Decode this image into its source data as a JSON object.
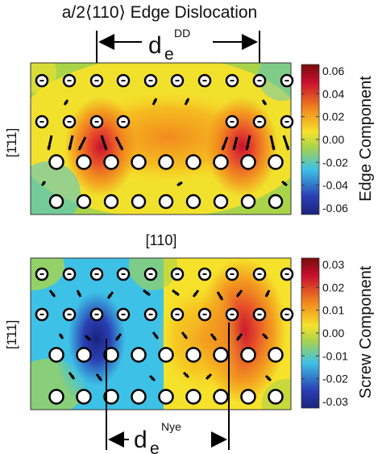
{
  "title": "a/2⟨110⟩ Edge Dislocation",
  "top_distance": {
    "base": "d",
    "sub": "e",
    "sup": "DD"
  },
  "bottom_distance": {
    "base": "d",
    "sub": "e",
    "sup": "Nye"
  },
  "axis_y_label": "[1̄11]",
  "axis_x_label": "[110]",
  "colorbars": {
    "top": {
      "label": "Edge Component",
      "ticks": [
        "0.06",
        "0.04",
        "0.02",
        "0.00",
        "-0.02",
        "-0.04",
        "-0.06"
      ]
    },
    "bottom": {
      "label": "Screw Component",
      "ticks": [
        "0.03",
        "0.02",
        "0.01",
        "0.00",
        "-0.01",
        "-0.02",
        "-0.03"
      ]
    }
  },
  "colors": {
    "red": "#c8102e",
    "orange": "#f28a1d",
    "yellow": "#f6e22a",
    "green": "#a9d44a",
    "cyan": "#3ec1e6",
    "blue": "#2a3fb3",
    "dark_blue": "#1a237e"
  }
}
